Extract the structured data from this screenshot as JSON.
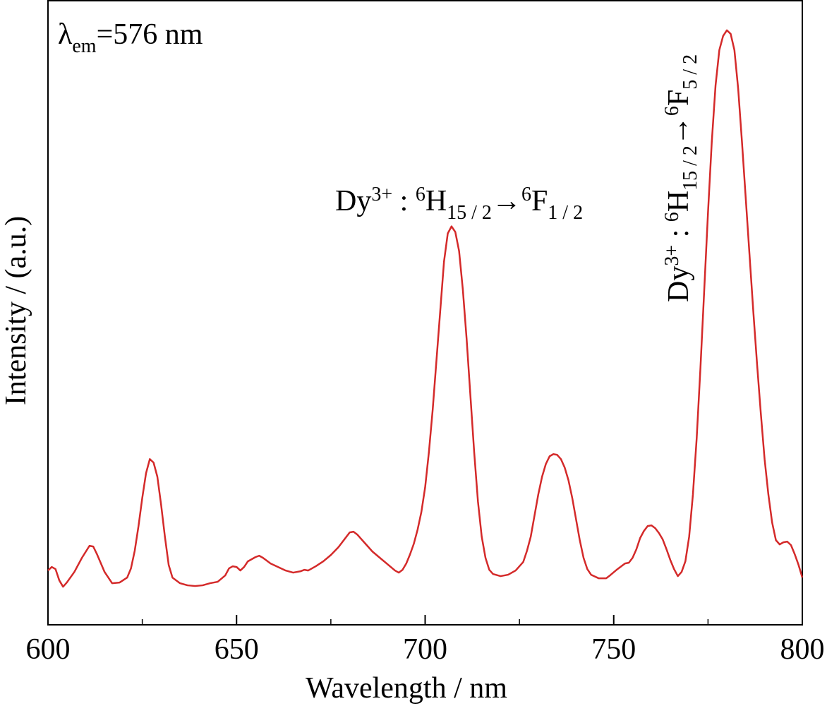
{
  "chart_data": {
    "type": "line",
    "xlabel": "Wavelength / nm",
    "ylabel": "Intensity / (a.u.)",
    "annotations": [
      {
        "parts": [
          {
            "text": "λ"
          },
          {
            "text": "em",
            "shift": "sub"
          },
          {
            "text": "=576 nm"
          }
        ]
      },
      {
        "parts": [
          {
            "text": "Dy"
          },
          {
            "text": "3+",
            "shift": "super"
          },
          {
            "text": " : "
          },
          {
            "text": "6",
            "shift": "super"
          },
          {
            "text": "H"
          },
          {
            "text": "15 / 2",
            "shift": "sub"
          },
          {
            "text": "→"
          },
          {
            "text": "6",
            "shift": "super"
          },
          {
            "text": "F"
          },
          {
            "text": "1 / 2",
            "shift": "sub"
          }
        ]
      },
      {
        "parts": [
          {
            "text": "Dy"
          },
          {
            "text": "3+",
            "shift": "super"
          },
          {
            "text": " : "
          },
          {
            "text": "6",
            "shift": "super"
          },
          {
            "text": "H"
          },
          {
            "text": "15 / 2",
            "shift": "sub"
          },
          {
            "text": "→"
          },
          {
            "text": "6",
            "shift": "super"
          },
          {
            "text": "F"
          },
          {
            "text": "5 / 2",
            "shift": "sub"
          }
        ]
      }
    ],
    "color": "#d42a2a",
    "xlim": [
      600,
      800
    ],
    "xticks": [
      600,
      650,
      700,
      750,
      800
    ],
    "xminorticks": [
      625,
      675,
      725,
      775
    ],
    "ylim": [
      0,
      885
    ],
    "x": [
      600,
      601,
      602,
      603,
      604,
      605,
      607,
      609,
      611,
      612,
      613,
      615,
      617,
      619,
      621,
      622,
      623,
      624,
      625,
      626,
      627,
      628,
      629,
      630,
      631,
      632,
      633,
      635,
      637,
      639,
      641,
      643,
      645,
      647,
      648,
      649,
      650,
      651,
      652,
      653,
      655,
      656,
      657,
      659,
      661,
      663,
      665,
      667,
      668,
      669,
      671,
      673,
      675,
      677,
      679,
      680,
      681,
      682,
      684,
      686,
      688,
      690,
      692,
      693,
      694,
      695,
      696,
      697,
      698,
      699,
      700,
      701,
      702,
      703,
      704,
      705,
      706,
      707,
      708,
      709,
      710,
      711,
      712,
      713,
      714,
      715,
      716,
      717,
      718,
      720,
      722,
      724,
      726,
      727,
      728,
      729,
      730,
      731,
      732,
      733,
      734,
      735,
      736,
      737,
      738,
      739,
      740,
      741,
      742,
      743,
      744,
      746,
      748,
      749,
      751,
      753,
      754,
      755,
      756,
      757,
      758,
      759,
      760,
      761,
      762,
      763,
      764,
      765,
      766,
      767,
      768,
      769,
      770,
      771,
      772,
      773,
      774,
      775,
      776,
      777,
      778,
      779,
      780,
      781,
      782,
      783,
      784,
      785,
      786,
      787,
      788,
      789,
      790,
      791,
      792,
      793,
      794,
      795,
      796,
      797,
      798,
      799,
      800
    ],
    "values": [
      77,
      82,
      79,
      63,
      54,
      60,
      75,
      95,
      112,
      111,
      100,
      75,
      59,
      60,
      67,
      80,
      105,
      140,
      180,
      215,
      235,
      230,
      210,
      170,
      125,
      85,
      67,
      59,
      56,
      55,
      56,
      59,
      61,
      70,
      80,
      83,
      82,
      77,
      82,
      90,
      96,
      98,
      95,
      87,
      82,
      77,
      74,
      76,
      78,
      77,
      83,
      90,
      99,
      110,
      124,
      131,
      132,
      128,
      116,
      104,
      95,
      86,
      77,
      74,
      78,
      87,
      100,
      115,
      135,
      160,
      195,
      245,
      305,
      375,
      445,
      515,
      555,
      565,
      557,
      530,
      475,
      405,
      325,
      245,
      175,
      125,
      95,
      78,
      72,
      69,
      71,
      77,
      89,
      105,
      125,
      155,
      185,
      210,
      228,
      239,
      242,
      241,
      235,
      223,
      205,
      180,
      150,
      120,
      95,
      79,
      71,
      66,
      66,
      70,
      79,
      87,
      88,
      95,
      107,
      123,
      133,
      140,
      141,
      137,
      130,
      121,
      107,
      92,
      79,
      69,
      75,
      90,
      125,
      185,
      265,
      365,
      475,
      585,
      685,
      765,
      815,
      835,
      843,
      838,
      815,
      760,
      685,
      605,
      525,
      445,
      370,
      300,
      235,
      185,
      145,
      120,
      114,
      117,
      118,
      113,
      100,
      85,
      67
    ]
  }
}
